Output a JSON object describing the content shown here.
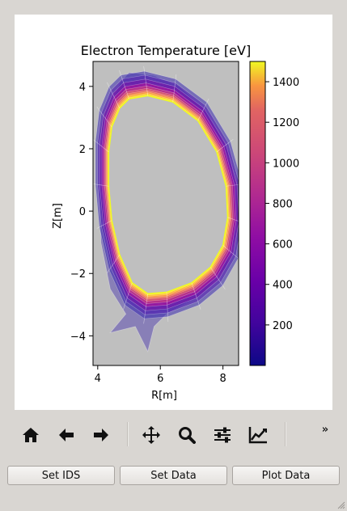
{
  "chart_data": {
    "type": "heatmap",
    "title": "Electron Temperature [eV]",
    "xlabel": "R[m]",
    "ylabel": "Z[m]",
    "xlim": [
      3.85,
      8.5
    ],
    "ylim": [
      -4.95,
      4.8
    ],
    "xticks": [
      4,
      6,
      8
    ],
    "yticks": [
      -4,
      -2,
      0,
      2,
      4
    ],
    "colorbar": {
      "ticks": [
        200,
        400,
        600,
        800,
        1000,
        1200,
        1400
      ],
      "range": [
        0,
        1500
      ],
      "colormap": "plasma"
    },
    "background_color": "#bfbfbf",
    "separatrix_R": [
      5.6,
      6.4,
      7.2,
      7.8,
      8.1,
      8.15,
      8.0,
      7.6,
      7.0,
      6.2,
      5.6,
      5.1,
      4.7,
      4.45,
      4.35,
      4.35,
      4.45,
      4.7,
      5.0,
      5.6
    ],
    "separatrix_Z": [
      3.7,
      3.5,
      2.9,
      1.9,
      0.8,
      -0.2,
      -1.1,
      -1.8,
      -2.3,
      -2.6,
      -2.65,
      -2.3,
      -1.4,
      -0.3,
      0.8,
      1.9,
      2.7,
      3.3,
      3.6,
      3.7
    ]
  },
  "toolbar": {
    "items": [
      {
        "name": "home-icon",
        "tooltip": "Home"
      },
      {
        "name": "back-icon",
        "tooltip": "Back"
      },
      {
        "name": "forward-icon",
        "tooltip": "Forward"
      },
      {
        "name": "pan-icon",
        "tooltip": "Pan"
      },
      {
        "name": "zoom-icon",
        "tooltip": "Zoom"
      },
      {
        "name": "configure-subplots-icon",
        "tooltip": "Subplots"
      },
      {
        "name": "edit-axes-icon",
        "tooltip": "Customize"
      }
    ],
    "overflow_label": "»"
  },
  "buttons": {
    "set_ids": "Set IDS",
    "set_data": "Set Data",
    "plot_data": "Plot Data"
  }
}
